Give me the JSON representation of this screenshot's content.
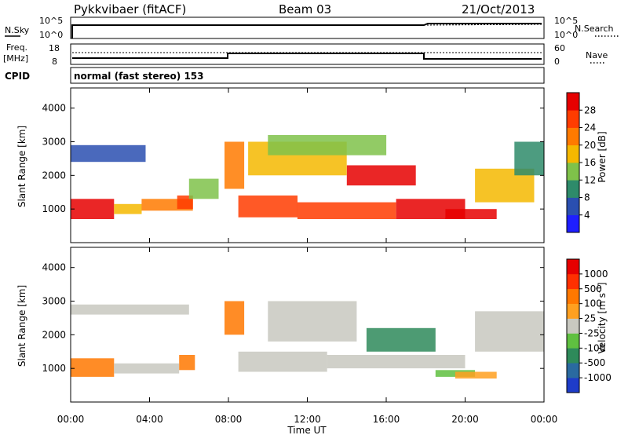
{
  "header": {
    "station": "Pykkvibaer (fitACF)",
    "beam": "Beam 03",
    "date": "21/Oct/2013"
  },
  "strips": {
    "nsky": {
      "label": "N.Sky",
      "ticks": [
        "10^5",
        "10^0"
      ]
    },
    "nsearch": {
      "label": "N.Search",
      "ticks": [
        "10^5",
        "10^0"
      ]
    },
    "freq": {
      "label_line1": "Freq.",
      "label_line2": "[MHz]",
      "ticks": [
        "18",
        "8"
      ]
    },
    "nave": {
      "label": "Nave",
      "ticks": [
        "60",
        "0"
      ]
    },
    "cpid": {
      "label": "CPID",
      "text": "normal (fast stereo) 153"
    }
  },
  "chart_data": [
    {
      "type": "heatmap",
      "name": "power",
      "ylabel": "Slant Range [km]",
      "xlim": [
        "00:00",
        "24:00"
      ],
      "ylim": [
        0,
        4600
      ],
      "y_ticks": [
        1000,
        2000,
        3000,
        4000
      ],
      "colorbar": {
        "label": "Power [dB]",
        "tick_labels": [
          "4",
          "8",
          "12",
          "16",
          "20",
          "24",
          "28"
        ],
        "bins": [
          "#1e1eff",
          "#2a4fb0",
          "#2e8b6a",
          "#7fc24a",
          "#f5b800",
          "#ff7a00",
          "#ff3c00",
          "#e60000"
        ]
      },
      "bands": [
        {
          "t0": 0.0,
          "t1": 2.2,
          "r0": 700,
          "r1": 1300,
          "level": 7
        },
        {
          "t0": 2.2,
          "t1": 3.6,
          "r0": 850,
          "r1": 1150,
          "level": 4
        },
        {
          "t0": 3.6,
          "t1": 6.2,
          "r0": 950,
          "r1": 1300,
          "level": 5
        },
        {
          "t0": 5.4,
          "t1": 6.2,
          "r0": 1000,
          "r1": 1400,
          "level": 6
        },
        {
          "t0": 6.0,
          "t1": 7.5,
          "r0": 1300,
          "r1": 1900,
          "level": 3
        },
        {
          "t0": 0.0,
          "t1": 3.8,
          "r0": 2400,
          "r1": 2900,
          "level": 1
        },
        {
          "t0": 7.8,
          "t1": 8.8,
          "r0": 1600,
          "r1": 3000,
          "level": 5
        },
        {
          "t0": 8.5,
          "t1": 11.5,
          "r0": 750,
          "r1": 1400,
          "level": 6
        },
        {
          "t0": 11.5,
          "t1": 16.5,
          "r0": 700,
          "r1": 1200,
          "level": 6
        },
        {
          "t0": 16.5,
          "t1": 20.0,
          "r0": 700,
          "r1": 1300,
          "level": 7
        },
        {
          "t0": 19.0,
          "t1": 21.6,
          "r0": 700,
          "r1": 1000,
          "level": 7
        },
        {
          "t0": 14.0,
          "t1": 17.5,
          "r0": 1700,
          "r1": 2300,
          "level": 7
        },
        {
          "t0": 9.0,
          "t1": 14.0,
          "r0": 2000,
          "r1": 3000,
          "level": 4
        },
        {
          "t0": 10.0,
          "t1": 16.0,
          "r0": 2600,
          "r1": 3200,
          "level": 3
        },
        {
          "t0": 20.5,
          "t1": 23.5,
          "r0": 1200,
          "r1": 2200,
          "level": 4
        },
        {
          "t0": 22.5,
          "t1": 24.0,
          "r0": 2000,
          "r1": 3000,
          "level": 2
        }
      ]
    },
    {
      "type": "heatmap",
      "name": "velocity",
      "ylabel": "Slant Range [km]",
      "xlabel": "Time UT",
      "xlim": [
        "00:00",
        "24:00"
      ],
      "x_ticks": [
        "00:00",
        "04:00",
        "08:00",
        "12:00",
        "16:00",
        "20:00",
        "00:00"
      ],
      "ylim": [
        0,
        4600
      ],
      "y_ticks": [
        1000,
        2000,
        3000,
        4000
      ],
      "colorbar": {
        "label": "Velocity [m s^-1]",
        "tick_labels": [
          "1000",
          "500",
          "100",
          "25",
          "-25",
          "-100",
          "-500",
          "-1000"
        ],
        "bins": [
          "#1e3cc8",
          "#2a6aa0",
          "#2e8a5a",
          "#5fc040",
          "#c8c8c0",
          "#ffa020",
          "#ff7800",
          "#ff3000",
          "#e60000"
        ]
      },
      "bands": [
        {
          "t0": 0.0,
          "t1": 2.2,
          "r0": 750,
          "r1": 1300,
          "level": 6
        },
        {
          "t0": 2.2,
          "t1": 5.5,
          "r0": 850,
          "r1": 1150,
          "level": 4
        },
        {
          "t0": 5.5,
          "t1": 6.3,
          "r0": 950,
          "r1": 1400,
          "level": 6
        },
        {
          "t0": 0.0,
          "t1": 6.0,
          "r0": 2600,
          "r1": 2900,
          "level": 4
        },
        {
          "t0": 7.8,
          "t1": 8.8,
          "r0": 2000,
          "r1": 3000,
          "level": 6
        },
        {
          "t0": 8.5,
          "t1": 13.0,
          "r0": 900,
          "r1": 1500,
          "level": 4
        },
        {
          "t0": 13.0,
          "t1": 20.0,
          "r0": 1000,
          "r1": 1400,
          "level": 4
        },
        {
          "t0": 15.0,
          "t1": 18.5,
          "r0": 1500,
          "r1": 2200,
          "level": 2
        },
        {
          "t0": 18.5,
          "t1": 20.5,
          "r0": 750,
          "r1": 950,
          "level": 3
        },
        {
          "t0": 19.5,
          "t1": 21.6,
          "r0": 700,
          "r1": 900,
          "level": 5
        },
        {
          "t0": 10.0,
          "t1": 14.5,
          "r0": 1800,
          "r1": 3000,
          "level": 4
        },
        {
          "t0": 20.5,
          "t1": 24.0,
          "r0": 1500,
          "r1": 2700,
          "level": 4
        }
      ]
    }
  ]
}
